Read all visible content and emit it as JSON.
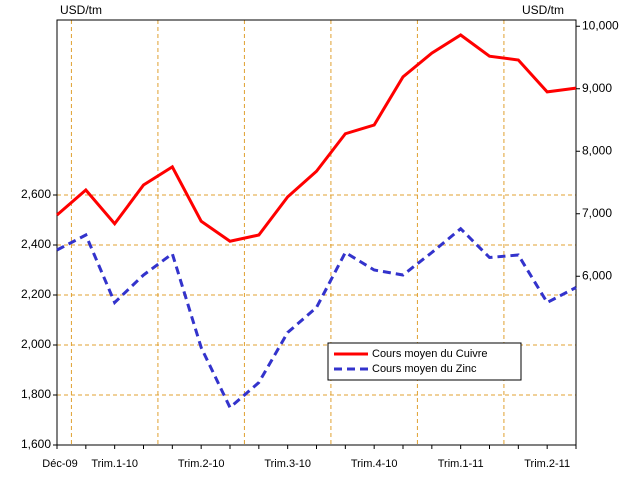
{
  "chart_data": {
    "type": "line",
    "y_label": "USD/tm",
    "y2_label": "USD/tm",
    "categories": [
      "Déc-09",
      null,
      "Trim.1-10",
      null,
      null,
      "Trim.2-10",
      null,
      null,
      "Trim.3-10",
      null,
      null,
      "Trim.4-10",
      null,
      null,
      "Trim.1-11",
      null,
      null,
      "Trim.2-11",
      null
    ],
    "series": [
      {
        "name": "Cours moyen du Cuivre",
        "color": "#ff0000",
        "dash": false,
        "axis": "y2",
        "values": [
          6980,
          7380,
          6840,
          7460,
          7750,
          6880,
          6560,
          6660,
          7270,
          7680,
          8280,
          8420,
          9190,
          9570,
          9860,
          9520,
          9460,
          8950,
          9010
        ]
      },
      {
        "name": "Cours moyen du Zinc",
        "color": "#3333cc",
        "dash": true,
        "axis": "y",
        "values": [
          2380,
          2440,
          2170,
          2280,
          2365,
          1990,
          1750,
          1850,
          2050,
          2150,
          2370,
          2300,
          2280,
          2370,
          2465,
          2350,
          2360,
          2170,
          2230
        ]
      }
    ],
    "ylim": [
      1600,
      3300
    ],
    "yticks": [
      {
        "value": 1600,
        "label": "1,600"
      },
      {
        "value": 1800,
        "label": "1,800"
      },
      {
        "value": 2000,
        "label": "2,000"
      },
      {
        "value": 2200,
        "label": "2,200"
      },
      {
        "value": 2400,
        "label": "2,400"
      },
      {
        "value": 2600,
        "label": "2,600"
      }
    ],
    "y2lim": [
      3300,
      10100
    ],
    "y2ticks": [
      {
        "value": 6000,
        "label": "6,000"
      },
      {
        "value": 7000,
        "label": "7,000"
      },
      {
        "value": 8000,
        "label": "8,000"
      },
      {
        "value": 9000,
        "label": "9,000"
      },
      {
        "value": 10000,
        "label": "10,000"
      }
    ],
    "grid": true,
    "grid_color": "#e0a030"
  }
}
